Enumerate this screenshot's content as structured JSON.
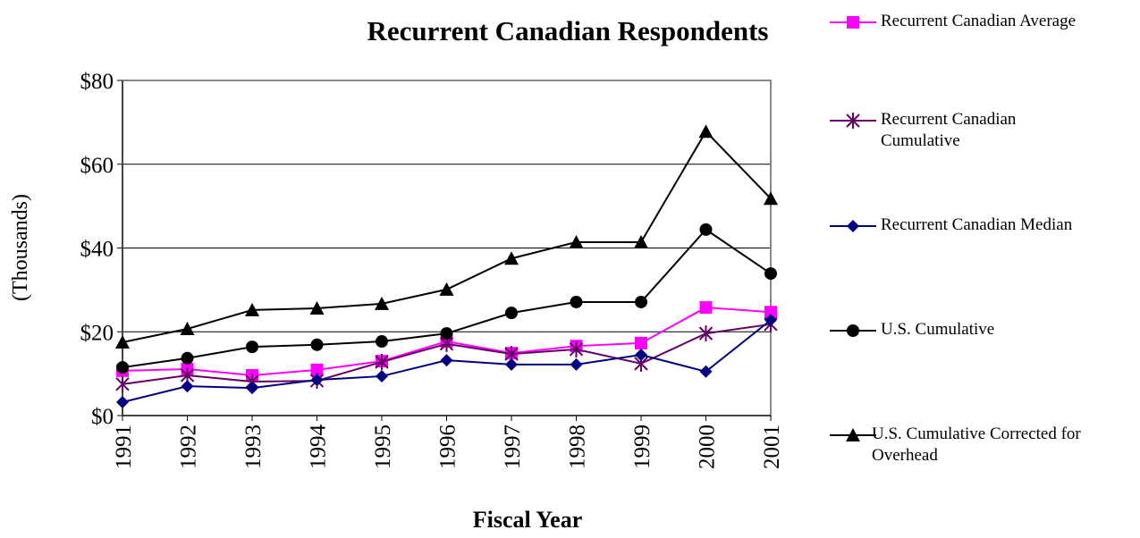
{
  "chart_data": {
    "type": "line",
    "title": "Recurrent Canadian Respondents",
    "x_label": "Fiscal Year",
    "y_label": "(Thousands)",
    "categories": [
      "1991",
      "1992",
      "1993",
      "1994",
      "1995",
      "1996",
      "1997",
      "1998",
      "1999",
      "2000",
      "2001"
    ],
    "ylim": [
      0,
      80
    ],
    "yticks": [
      {
        "value": 0,
        "label": "$0"
      },
      {
        "value": 20,
        "label": "$20"
      },
      {
        "value": 40,
        "label": "$40"
      },
      {
        "value": 60,
        "label": "$60"
      },
      {
        "value": 80,
        "label": "$80"
      }
    ],
    "grid": true,
    "legend": "right",
    "series": [
      {
        "name": "Recurrent Canadian Average",
        "color": "#ff00ff",
        "marker": "square",
        "values": [
          10.7,
          11.1,
          9.6,
          10.9,
          13,
          17.7,
          14.9,
          16.6,
          17.3,
          25.8,
          24.7
        ]
      },
      {
        "name": "Recurrent Canadian Cumulative",
        "color": "#660066",
        "marker": "asterisk",
        "values": [
          7.5,
          9.6,
          8.1,
          8.3,
          12.8,
          17.1,
          14.7,
          15.8,
          12.4,
          19.6,
          21.8
        ]
      },
      {
        "name": "Recurrent Canadian Median",
        "color": "#000080",
        "marker": "diamond",
        "values": [
          3.2,
          7,
          6.6,
          8.5,
          9.4,
          13.2,
          12.2,
          12.2,
          14.5,
          10.5,
          22.8
        ]
      },
      {
        "name": "U.S. Cumulative",
        "color": "#000000",
        "marker": "circle",
        "values": [
          11.5,
          13.7,
          16.4,
          16.9,
          17.7,
          19.6,
          24.5,
          27.1,
          27.1,
          44.4,
          33.9
        ]
      },
      {
        "name": "U.S. Cumulative  Corrected for Overhead",
        "color": "#000000",
        "marker": "triangle",
        "values": [
          17.5,
          20.7,
          25.2,
          25.6,
          26.7,
          30.1,
          37.5,
          41.4,
          41.4,
          67.8,
          51.8
        ]
      }
    ]
  }
}
